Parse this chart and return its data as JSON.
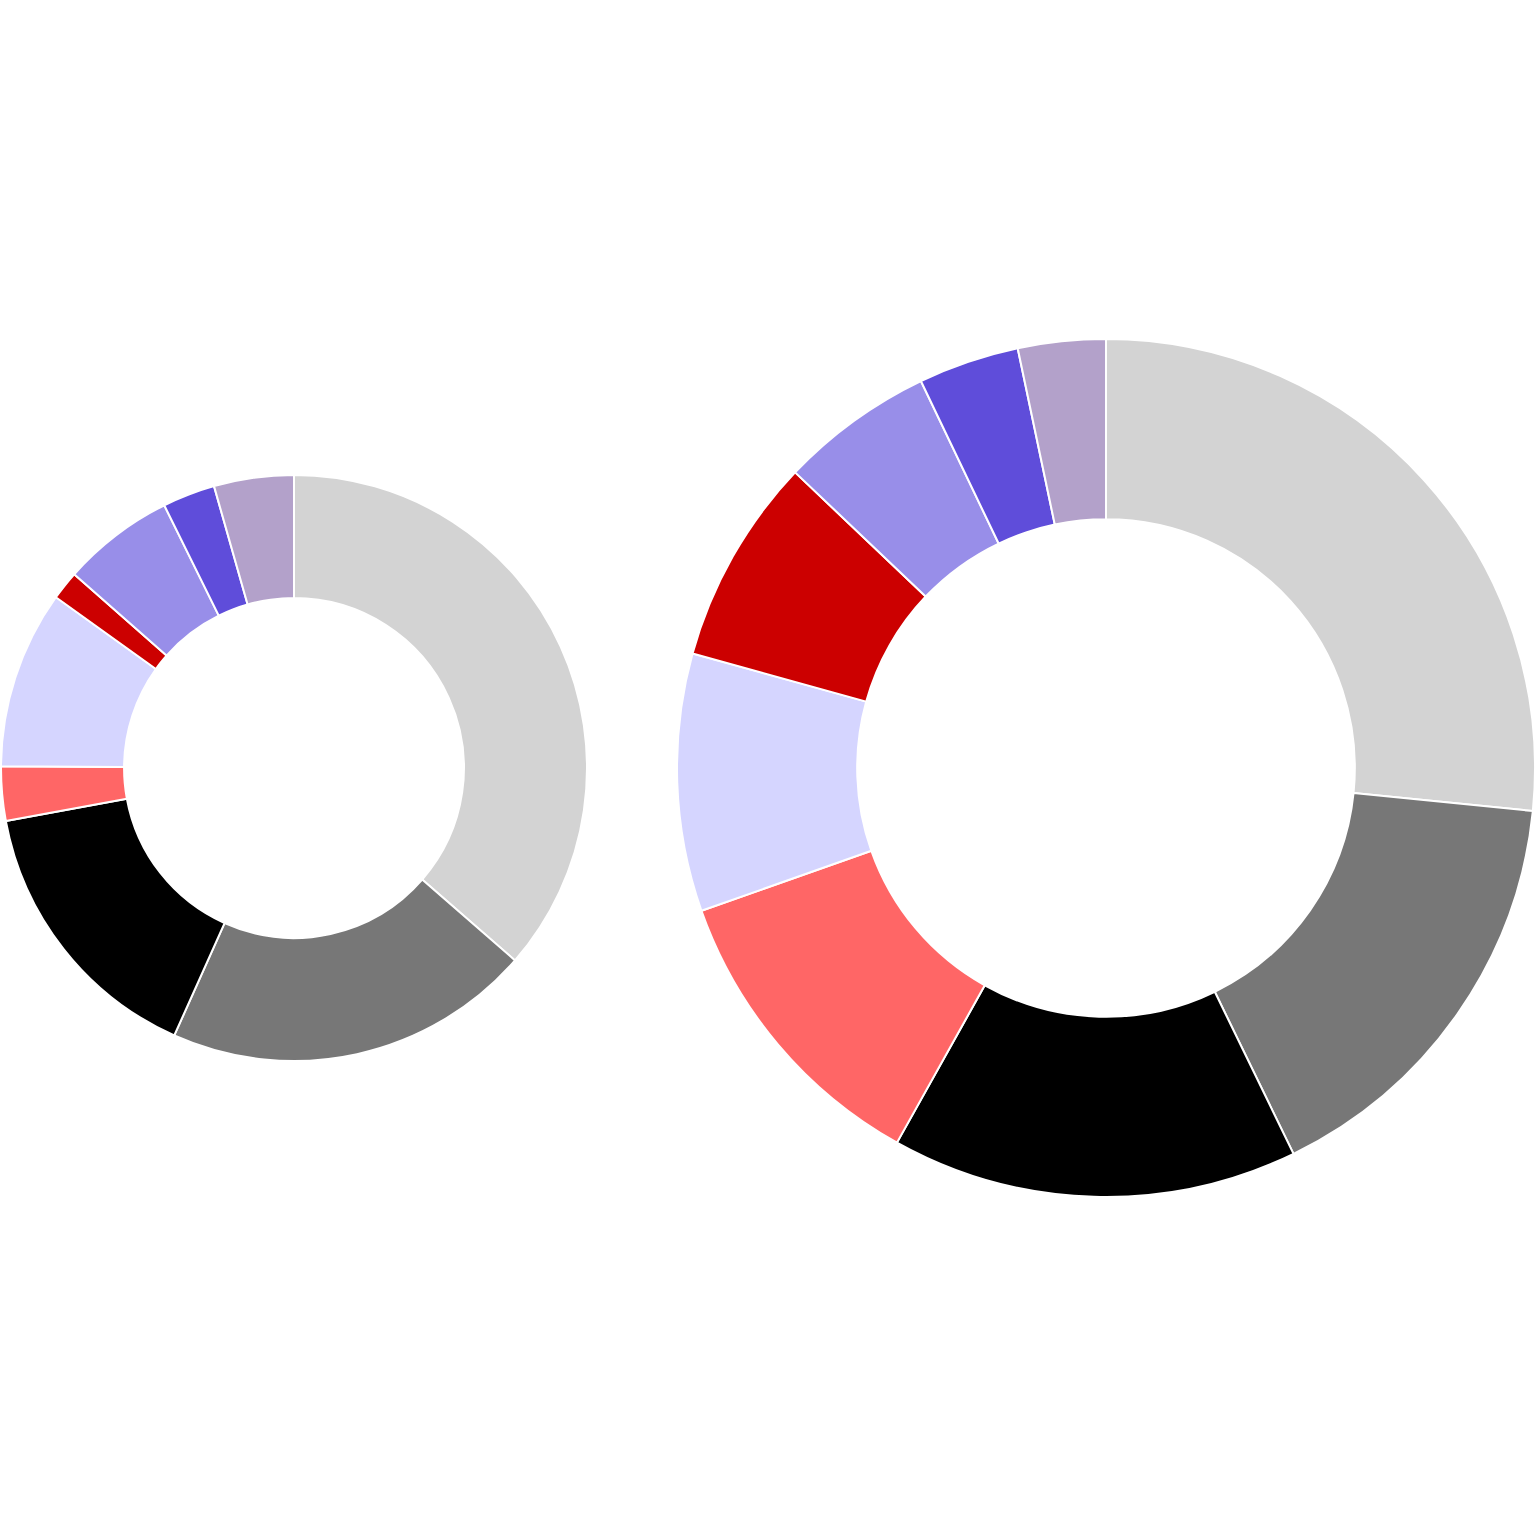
{
  "chart_data": [
    {
      "type": "donut",
      "categories": [
        null,
        null,
        null,
        null,
        null,
        null,
        null,
        null,
        null
      ],
      "values": [
        36.4,
        20.3,
        15.4,
        3.0,
        9.8,
        1.6,
        6.2,
        2.9,
        4.4
      ],
      "colors": [
        "#d3d3d3",
        "#777777",
        "#000000",
        "#ff6666",
        "#d5d5ff",
        "#cc0000",
        "#988ee9",
        "#5f4dda",
        "#b3a1ca"
      ]
    },
    {
      "type": "donut",
      "categories": [
        null,
        null,
        null,
        null,
        null,
        null,
        null,
        null,
        null
      ],
      "values": [
        26.6,
        16.2,
        15.3,
        11.5,
        9.7,
        7.8,
        5.8,
        3.8,
        3.3
      ],
      "colors": [
        "#d3d3d3",
        "#777777",
        "#000000",
        "#ff6666",
        "#d5d5ff",
        "#cc0000",
        "#988ee9",
        "#5f4dda",
        "#b3a1ca"
      ]
    }
  ]
}
